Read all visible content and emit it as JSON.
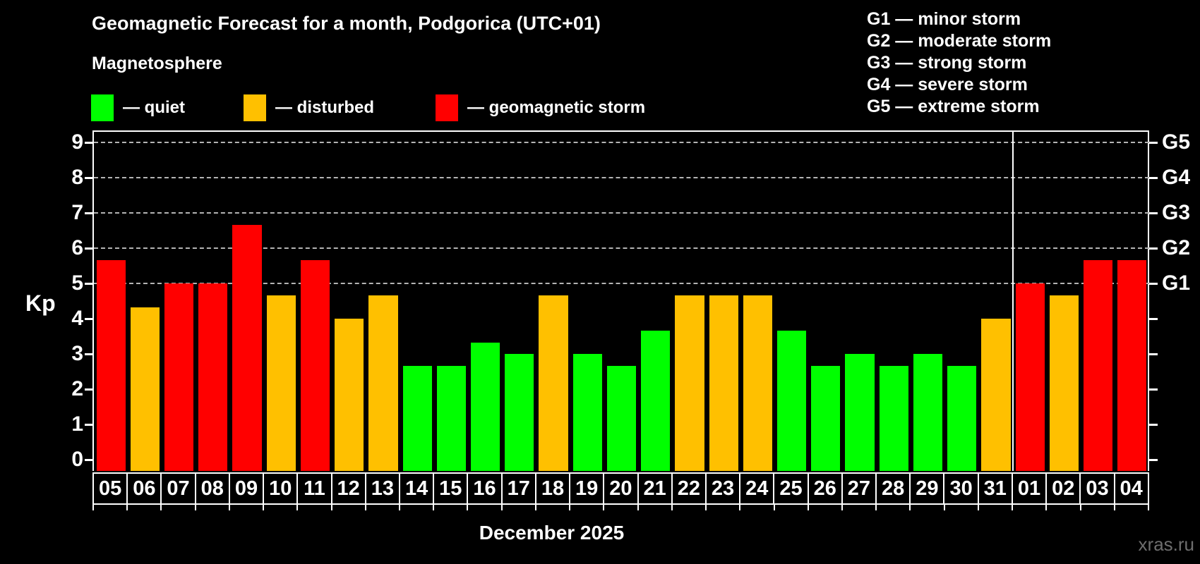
{
  "header": {
    "title": "Geomagnetic Forecast for a month, Podgorica (UTC+01)",
    "subtitle": "Magnetosphere",
    "legend": [
      {
        "name": "quiet",
        "label": "— quiet",
        "color": "#00ff00"
      },
      {
        "name": "disturbed",
        "label": "— disturbed",
        "color": "#ffc000"
      },
      {
        "name": "storm",
        "label": "— geomagnetic storm",
        "color": "#ff0000"
      }
    ],
    "g_legend": [
      "G1 — minor storm",
      "G2 — moderate storm",
      "G3 — strong storm",
      "G4 — severe storm",
      "G5 — extreme storm"
    ]
  },
  "chart_data": {
    "type": "bar",
    "title": "Geomagnetic Forecast for a month, Podgorica (UTC+01)",
    "ylabel": "Kp",
    "xlabel": "December 2025",
    "ylim": [
      0,
      9.3
    ],
    "yticks": [
      0,
      1,
      2,
      3,
      4,
      5,
      6,
      7,
      8,
      9
    ],
    "gridlines_at": [
      5,
      6,
      7,
      8,
      9
    ],
    "grid": "dashed horizontal at storm levels only",
    "right_axis_labels": [
      {
        "kp": 9,
        "label": "G5"
      },
      {
        "kp": 8,
        "label": "G4"
      },
      {
        "kp": 7,
        "label": "G3"
      },
      {
        "kp": 6,
        "label": "G2"
      },
      {
        "kp": 5,
        "label": "G1"
      }
    ],
    "colors": {
      "quiet": "#00ff00",
      "disturbed": "#ffc000",
      "storm": "#ff0000"
    },
    "december_count": 27,
    "days": [
      {
        "label": "05",
        "kp": 5.67,
        "status": "storm"
      },
      {
        "label": "06",
        "kp": 4.33,
        "status": "disturbed"
      },
      {
        "label": "07",
        "kp": 5.0,
        "status": "storm"
      },
      {
        "label": "08",
        "kp": 5.0,
        "status": "storm"
      },
      {
        "label": "09",
        "kp": 6.67,
        "status": "storm"
      },
      {
        "label": "10",
        "kp": 4.67,
        "status": "disturbed"
      },
      {
        "label": "11",
        "kp": 5.67,
        "status": "storm"
      },
      {
        "label": "12",
        "kp": 4.0,
        "status": "disturbed"
      },
      {
        "label": "13",
        "kp": 4.67,
        "status": "disturbed"
      },
      {
        "label": "14",
        "kp": 2.67,
        "status": "quiet"
      },
      {
        "label": "15",
        "kp": 2.67,
        "status": "quiet"
      },
      {
        "label": "16",
        "kp": 3.33,
        "status": "quiet"
      },
      {
        "label": "17",
        "kp": 3.0,
        "status": "quiet"
      },
      {
        "label": "18",
        "kp": 4.67,
        "status": "disturbed"
      },
      {
        "label": "19",
        "kp": 3.0,
        "status": "quiet"
      },
      {
        "label": "20",
        "kp": 2.67,
        "status": "quiet"
      },
      {
        "label": "21",
        "kp": 3.67,
        "status": "quiet"
      },
      {
        "label": "22",
        "kp": 4.67,
        "status": "disturbed"
      },
      {
        "label": "23",
        "kp": 4.67,
        "status": "disturbed"
      },
      {
        "label": "24",
        "kp": 4.67,
        "status": "disturbed"
      },
      {
        "label": "25",
        "kp": 3.67,
        "status": "quiet"
      },
      {
        "label": "26",
        "kp": 2.67,
        "status": "quiet"
      },
      {
        "label": "27",
        "kp": 3.0,
        "status": "quiet"
      },
      {
        "label": "28",
        "kp": 2.67,
        "status": "quiet"
      },
      {
        "label": "29",
        "kp": 3.0,
        "status": "quiet"
      },
      {
        "label": "30",
        "kp": 2.67,
        "status": "quiet"
      },
      {
        "label": "31",
        "kp": 4.0,
        "status": "disturbed"
      },
      {
        "label": "01",
        "kp": 5.0,
        "status": "storm"
      },
      {
        "label": "02",
        "kp": 4.67,
        "status": "disturbed"
      },
      {
        "label": "03",
        "kp": 5.67,
        "status": "storm"
      },
      {
        "label": "04",
        "kp": 5.67,
        "status": "storm"
      }
    ],
    "footer": "December 2025",
    "watermark": "xras.ru"
  }
}
